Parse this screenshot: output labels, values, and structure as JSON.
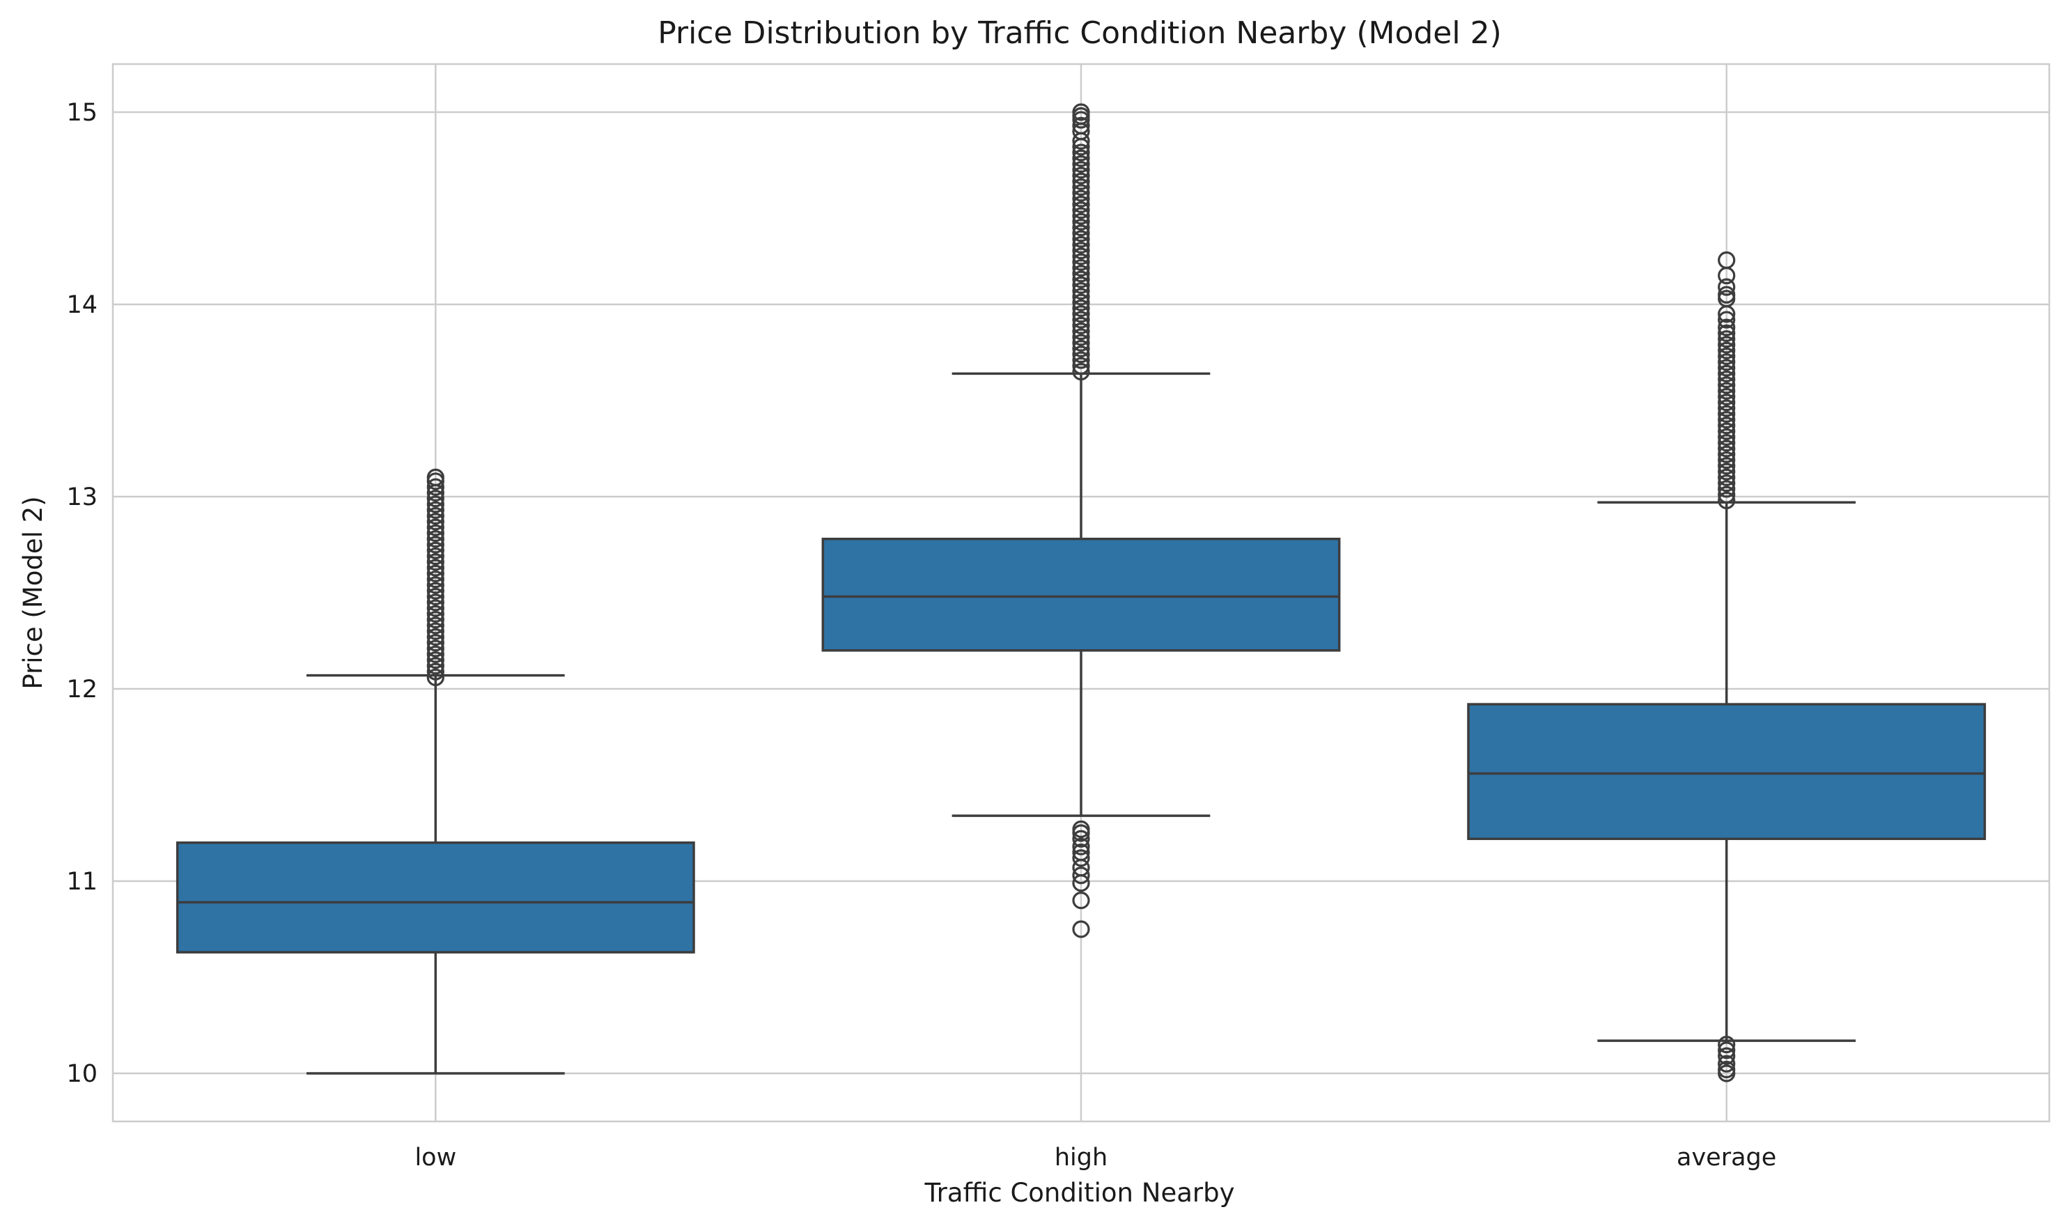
{
  "chart_data": {
    "type": "box",
    "title": "Price Distribution by Traffic Condition Nearby (Model 2)",
    "xlabel": "Traffic Condition Nearby",
    "ylabel": "Price (Model 2)",
    "ylim": [
      9.75,
      15.25
    ],
    "yticks": [
      10,
      11,
      12,
      13,
      14,
      15
    ],
    "grid": true,
    "box_color": "#2f73a5",
    "line_color": "#3d3d3d",
    "categories": [
      "low",
      "high",
      "average"
    ],
    "boxes": [
      {
        "category": "low",
        "whisker_low": 10.0,
        "q1": 10.63,
        "median": 10.89,
        "q3": 11.2,
        "whisker_high": 12.07,
        "fliers_low": [],
        "fliers_high": [
          12.06,
          12.09,
          12.12,
          12.15,
          12.18,
          12.21,
          12.24,
          12.27,
          12.3,
          12.33,
          12.36,
          12.39,
          12.42,
          12.45,
          12.48,
          12.51,
          12.54,
          12.57,
          12.6,
          12.63,
          12.66,
          12.69,
          12.72,
          12.75,
          12.78,
          12.81,
          12.84,
          12.87,
          12.9,
          12.93,
          12.96,
          12.99,
          13.02,
          13.05,
          13.08,
          13.1
        ]
      },
      {
        "category": "high",
        "whisker_low": 11.34,
        "q1": 12.2,
        "median": 12.48,
        "q3": 12.78,
        "whisker_high": 13.64,
        "fliers_low": [
          11.27,
          11.25,
          11.22,
          11.18,
          11.15,
          11.12,
          11.07,
          11.03,
          10.99,
          10.9,
          10.75
        ],
        "fliers_high": [
          13.65,
          13.68,
          13.71,
          13.74,
          13.77,
          13.8,
          13.83,
          13.86,
          13.89,
          13.92,
          13.95,
          13.98,
          14.01,
          14.04,
          14.07,
          14.1,
          14.13,
          14.16,
          14.19,
          14.22,
          14.25,
          14.28,
          14.31,
          14.34,
          14.37,
          14.4,
          14.43,
          14.46,
          14.49,
          14.52,
          14.55,
          14.58,
          14.61,
          14.64,
          14.67,
          14.7,
          14.73,
          14.76,
          14.79,
          14.82,
          14.85,
          14.9,
          14.93,
          14.96,
          14.98,
          15.0
        ]
      },
      {
        "category": "average",
        "whisker_low": 10.17,
        "q1": 11.22,
        "median": 11.56,
        "q3": 11.92,
        "whisker_high": 12.97,
        "fliers_low": [
          10.15,
          10.12,
          10.09,
          10.05,
          10.02,
          10.0
        ],
        "fliers_high": [
          12.98,
          13.01,
          13.04,
          13.07,
          13.1,
          13.13,
          13.16,
          13.19,
          13.22,
          13.25,
          13.28,
          13.31,
          13.34,
          13.37,
          13.4,
          13.43,
          13.46,
          13.49,
          13.52,
          13.55,
          13.58,
          13.61,
          13.64,
          13.67,
          13.7,
          13.73,
          13.76,
          13.79,
          13.82,
          13.85,
          13.88,
          13.92,
          13.95,
          14.03,
          14.05,
          14.09,
          14.15,
          14.23
        ]
      }
    ]
  }
}
